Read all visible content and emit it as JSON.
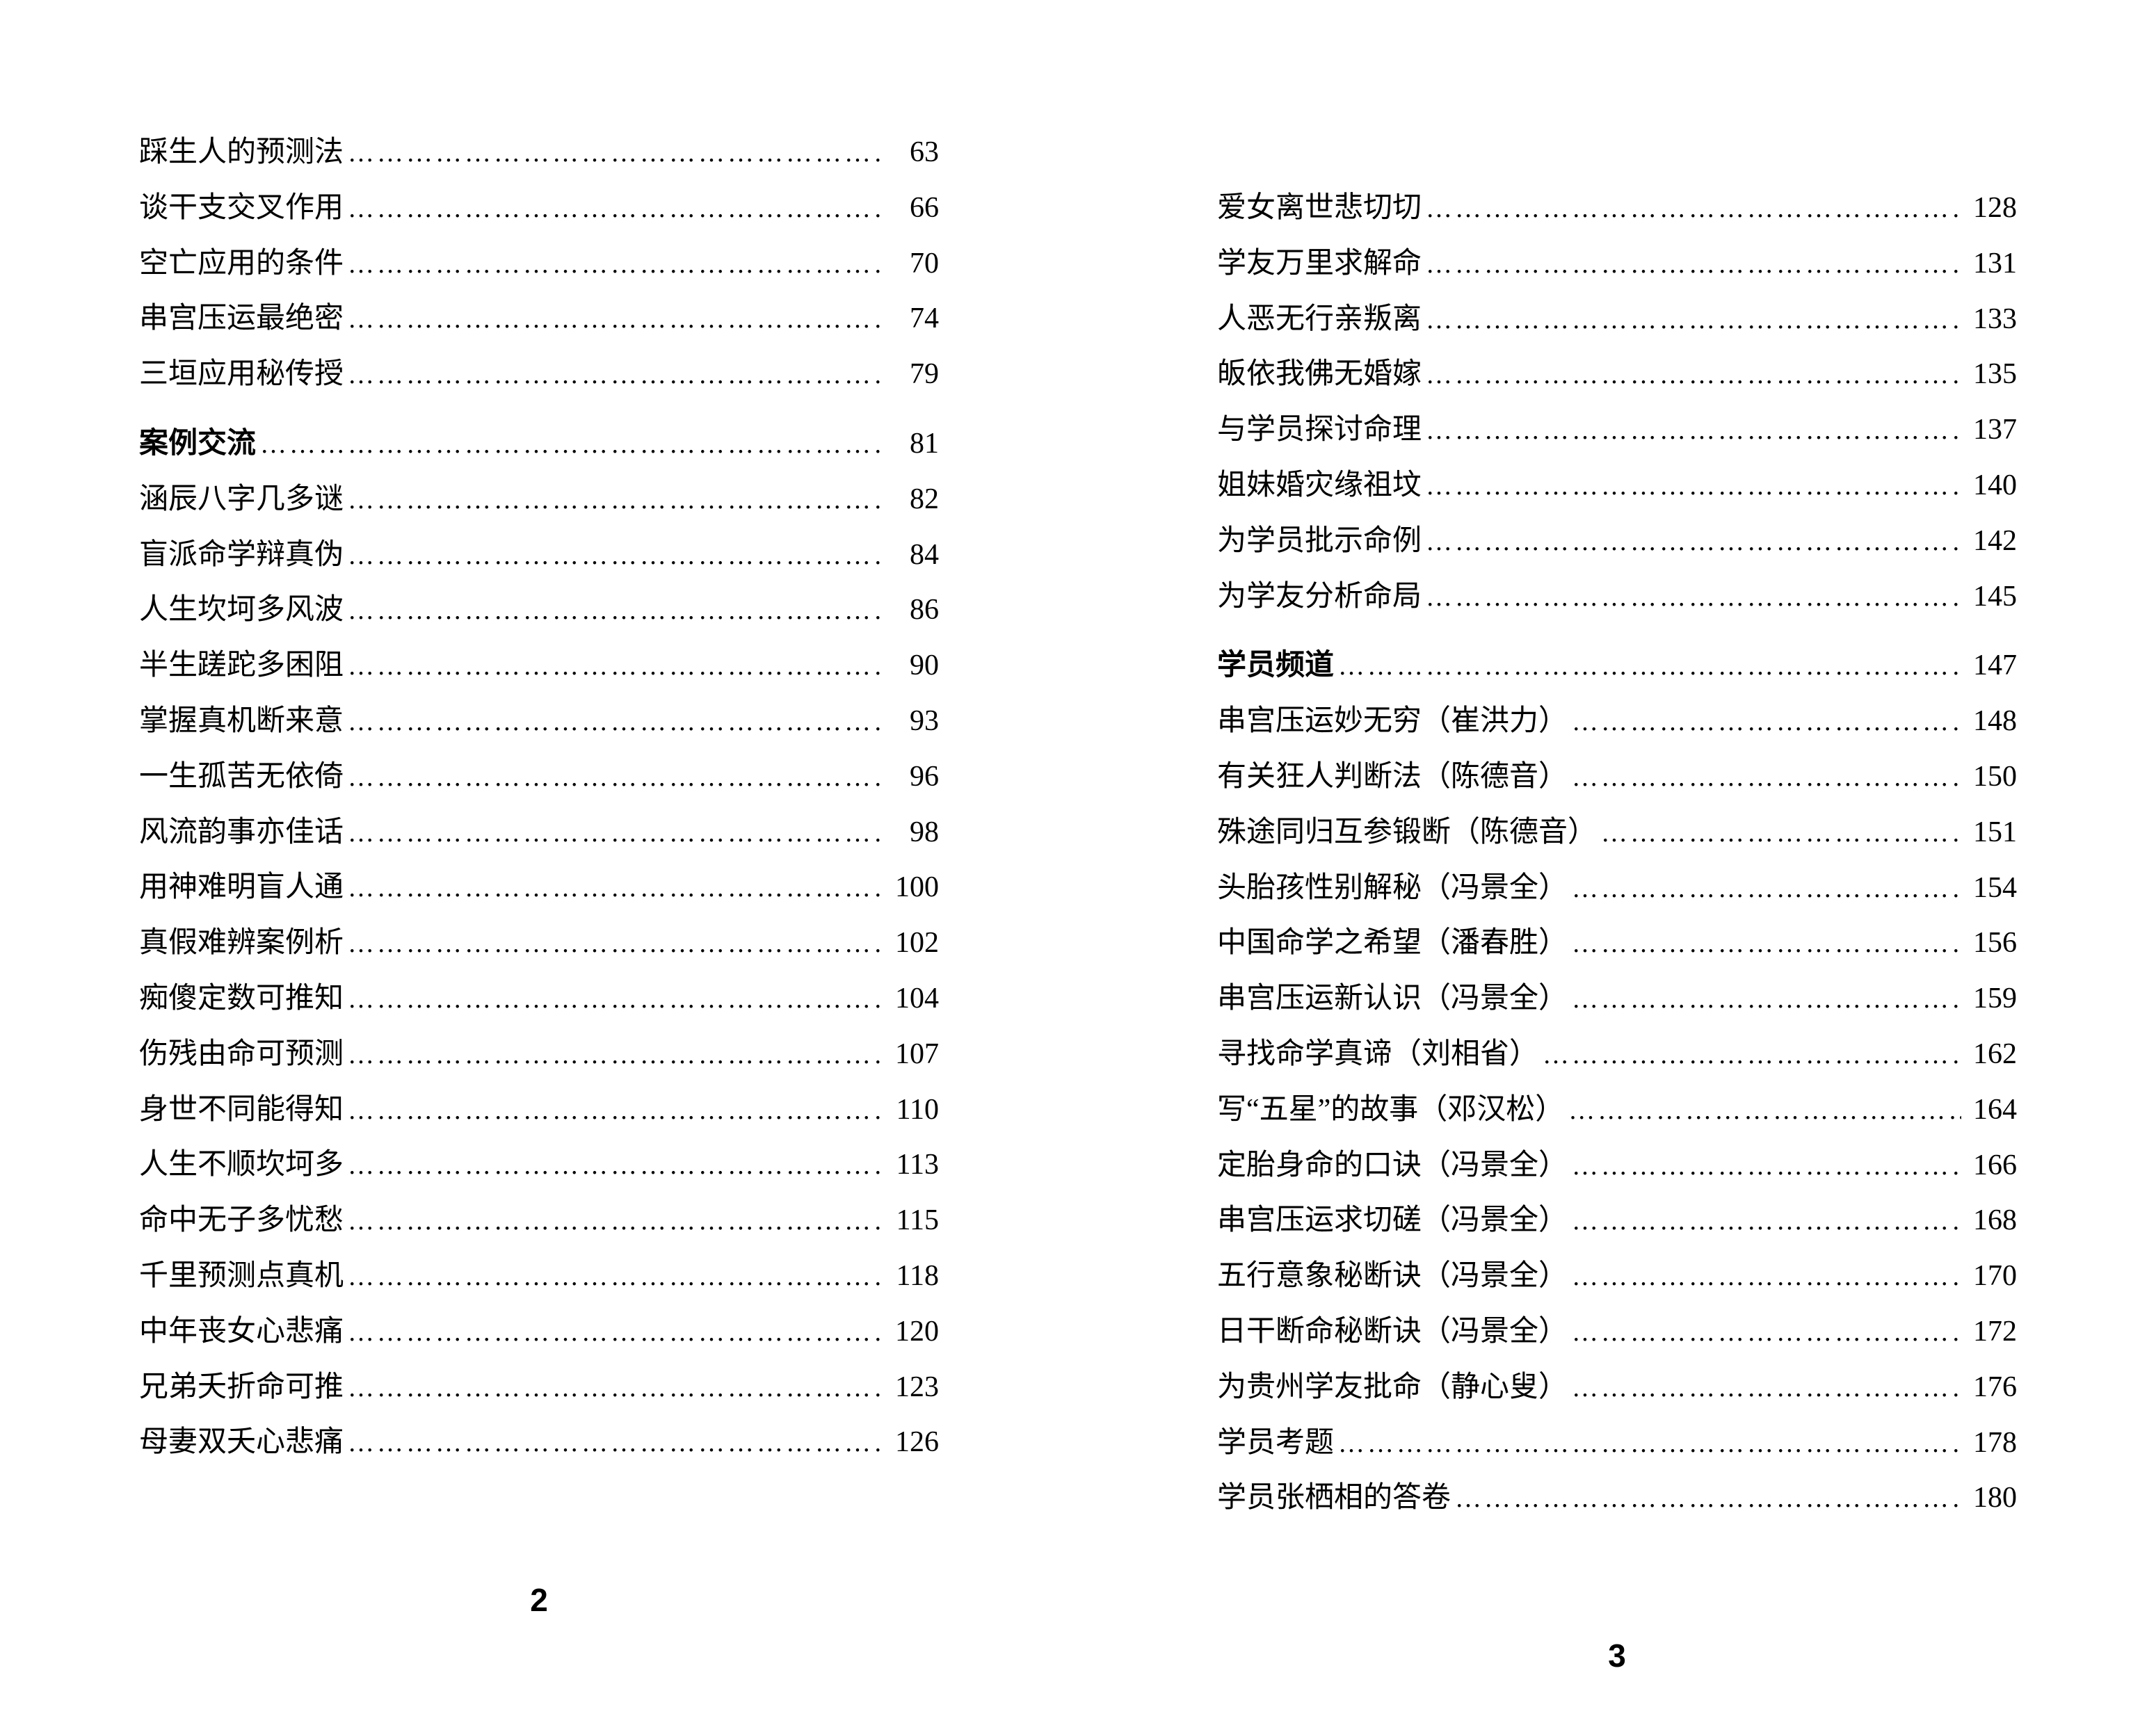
{
  "dots": "………………………………………………………………",
  "pageLeft": {
    "number": "2",
    "entries": [
      {
        "title": "踩生人的预测法",
        "page": "63",
        "bold": false
      },
      {
        "title": "谈干支交叉作用",
        "page": "66",
        "bold": false
      },
      {
        "title": "空亡应用的条件",
        "page": "70",
        "bold": false
      },
      {
        "title": "串宫压运最绝密",
        "page": "74",
        "bold": false
      },
      {
        "title": "三垣应用秘传授",
        "page": "79",
        "bold": false
      },
      {
        "title": "案例交流",
        "page": "81",
        "bold": true,
        "gapBefore": true
      },
      {
        "title": "涵辰八字几多谜",
        "page": "82",
        "bold": false
      },
      {
        "title": "盲派命学辩真伪",
        "page": "84",
        "bold": false
      },
      {
        "title": "人生坎坷多风波",
        "page": "86",
        "bold": false
      },
      {
        "title": "半生蹉跎多困阻",
        "page": "90",
        "bold": false
      },
      {
        "title": "掌握真机断来意",
        "page": "93",
        "bold": false
      },
      {
        "title": "一生孤苦无依倚",
        "page": "96",
        "bold": false
      },
      {
        "title": "风流韵事亦佳话",
        "page": "98",
        "bold": false
      },
      {
        "title": "用神难明盲人通",
        "page": "100",
        "bold": false
      },
      {
        "title": "真假难辨案例析",
        "page": "102",
        "bold": false
      },
      {
        "title": "痴傻定数可推知",
        "page": "104",
        "bold": false
      },
      {
        "title": "伤残由命可预测",
        "page": "107",
        "bold": false
      },
      {
        "title": "身世不同能得知",
        "page": "110",
        "bold": false
      },
      {
        "title": "人生不顺坎坷多",
        "page": "113",
        "bold": false
      },
      {
        "title": "命中无子多忧愁",
        "page": "115",
        "bold": false
      },
      {
        "title": "千里预测点真机",
        "page": "118",
        "bold": false
      },
      {
        "title": "中年丧女心悲痛",
        "page": "120",
        "bold": false
      },
      {
        "title": "兄弟夭折命可推",
        "page": "123",
        "bold": false
      },
      {
        "title": "母妻双夭心悲痛",
        "page": "126",
        "bold": false
      }
    ]
  },
  "pageRight": {
    "number": "3",
    "entries": [
      {
        "title": "爱女离世悲切切",
        "page": "128",
        "bold": false
      },
      {
        "title": "学友万里求解命",
        "page": "131",
        "bold": false
      },
      {
        "title": "人恶无行亲叛离",
        "page": "133",
        "bold": false
      },
      {
        "title": "皈依我佛无婚嫁",
        "page": "135",
        "bold": false
      },
      {
        "title": "与学员探讨命理",
        "page": "137",
        "bold": false
      },
      {
        "title": "姐妹婚灾缘祖坟",
        "page": "140",
        "bold": false
      },
      {
        "title": "为学员批示命例",
        "page": "142",
        "bold": false
      },
      {
        "title": "为学友分析命局",
        "page": "145",
        "bold": false
      },
      {
        "title": "学员频道",
        "page": "147",
        "bold": true,
        "gapBefore": true
      },
      {
        "title": "串宫压运妙无穷（崔洪力）",
        "page": "148",
        "bold": false
      },
      {
        "title": "有关狂人判断法（陈德音）",
        "page": "150",
        "bold": false
      },
      {
        "title": "殊途同归互参锻断（陈德音）",
        "page": "151",
        "bold": false
      },
      {
        "title": "头胎孩性别解秘（冯景全）",
        "page": "154",
        "bold": false
      },
      {
        "title": "中国命学之希望（潘春胜）",
        "page": "156",
        "bold": false
      },
      {
        "title": "串宫压运新认识（冯景全）",
        "page": "159",
        "bold": false
      },
      {
        "title": "寻找命学真谛（刘相省）",
        "page": "162",
        "bold": false
      },
      {
        "title": "写“五星”的故事（邓汉松）",
        "page": "164",
        "bold": false
      },
      {
        "title": "定胎身命的口诀（冯景全）",
        "page": "166",
        "bold": false
      },
      {
        "title": "串宫压运求切磋（冯景全）",
        "page": "168",
        "bold": false
      },
      {
        "title": "五行意象秘断诀（冯景全）",
        "page": "170",
        "bold": false
      },
      {
        "title": "日干断命秘断诀（冯景全）",
        "page": "172",
        "bold": false
      },
      {
        "title": "为贵州学友批命（静心叟）",
        "page": "176",
        "bold": false
      },
      {
        "title": "学员考题",
        "page": "178",
        "bold": false
      },
      {
        "title": "学员张栖相的答卷",
        "page": "180",
        "bold": false
      }
    ]
  }
}
